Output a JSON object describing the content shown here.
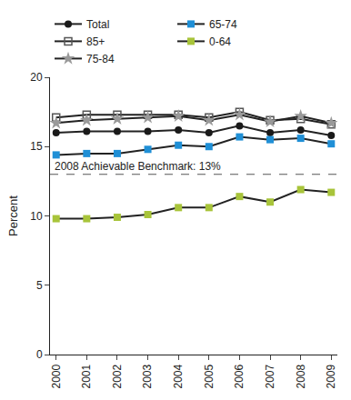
{
  "chart_data": {
    "type": "line",
    "y_label": "Percent",
    "x": [
      2000,
      2001,
      2002,
      2003,
      2004,
      2005,
      2006,
      2007,
      2008,
      2009
    ],
    "xlim": [
      1999.8,
      2009.2
    ],
    "xticks": [
      2000,
      2001,
      2002,
      2003,
      2004,
      2005,
      2006,
      2007,
      2008,
      2009
    ],
    "ylim": [
      0,
      20
    ],
    "yticks": [
      0,
      5,
      10,
      15,
      20
    ],
    "grid": false,
    "legend": "top",
    "series": [
      {
        "name": "Total",
        "color": "#1a1a1a",
        "marker": "circle",
        "values": [
          16.0,
          16.1,
          16.1,
          16.1,
          16.2,
          16.0,
          16.5,
          16.0,
          16.2,
          15.8
        ]
      },
      {
        "name": "65-74",
        "color": "#1f8fd6",
        "marker": "square",
        "values": [
          14.4,
          14.5,
          14.5,
          14.8,
          15.1,
          15.0,
          15.7,
          15.5,
          15.6,
          15.2
        ]
      },
      {
        "name": "85+",
        "color": "#555555",
        "marker": "square-open",
        "values": [
          17.1,
          17.3,
          17.3,
          17.3,
          17.3,
          17.1,
          17.5,
          16.9,
          17.0,
          16.6
        ]
      },
      {
        "name": "0-64",
        "color": "#a8c43a",
        "marker": "square",
        "values": [
          9.8,
          9.8,
          9.9,
          10.1,
          10.6,
          10.6,
          11.4,
          11.0,
          11.9,
          11.7
        ]
      },
      {
        "name": "75-84",
        "color": "#999999",
        "marker": "star",
        "values": [
          16.7,
          16.9,
          17.0,
          17.1,
          17.2,
          16.9,
          17.3,
          16.8,
          17.2,
          16.7
        ]
      }
    ],
    "benchmark": {
      "value": 13,
      "label": "2008 Achievable Benchmark: 13%",
      "line_style": "dash"
    }
  }
}
